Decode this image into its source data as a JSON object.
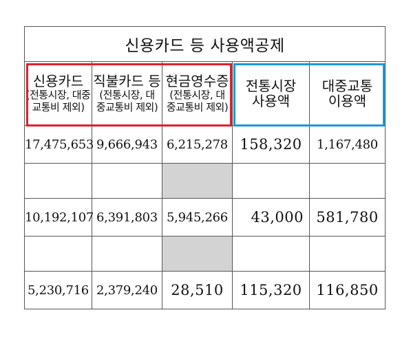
{
  "title": "신용카드 등 사용액공제",
  "headers": [
    {
      "main": "신용카드",
      "sub1": "(전통시장, 대중",
      "sub2": "교통비 제외)"
    },
    {
      "main": "직불카드 등",
      "sub1": "(전통시장, 대",
      "sub2": "중교통비 제외)"
    },
    {
      "main": "현금영수증",
      "sub1": "(전통시장, 대",
      "sub2": "중교통비 제외)"
    },
    {
      "main": "전통시장",
      "sub1": "사용액",
      "sub2": ""
    },
    {
      "main": "대중교통",
      "sub1": "이용액",
      "sub2": ""
    }
  ],
  "rows": [
    {
      "cells": [
        "17,475,653",
        "9,666,943",
        "6,215,278",
        "158,320",
        "1,167,480"
      ]
    },
    {
      "cells": [
        "",
        "",
        "",
        "",
        ""
      ]
    },
    {
      "cells": [
        "10,192,107",
        "6,391,803",
        "5,945,266",
        "43,000",
        "581,780"
      ]
    },
    {
      "cells": [
        "",
        "",
        "",
        "",
        ""
      ]
    },
    {
      "cells": [
        "5,230,716",
        "2,379,240",
        "28,510",
        "115,320",
        "116,850"
      ]
    }
  ],
  "highlight_colors": {
    "red": "#e0202a",
    "blue": "#1a9ad6",
    "grey": "#d3d3d3"
  }
}
